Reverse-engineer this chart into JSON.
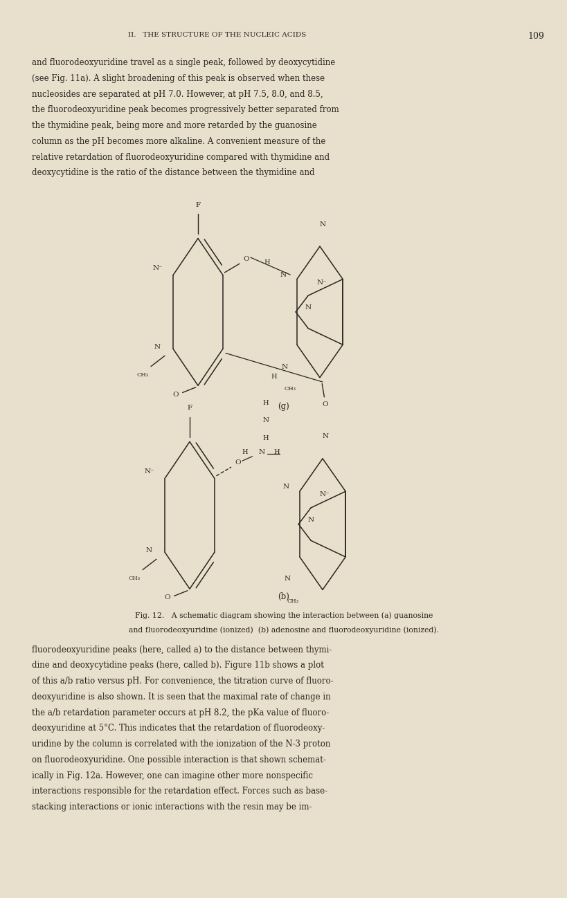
{
  "bg_color": "#e8e0cc",
  "text_color": "#2a2520",
  "page_width": 8.0,
  "page_height": 12.78,
  "header_text": "II.   THE STRUCTURE OF THE NUCLEIC ACIDS",
  "header_page": "109",
  "para1_lines": [
    "and fluorodeoxyuridine travel as a single peak, followed by deoxycytidine",
    "(see Fig. 11a). A slight broadening of this peak is observed when these",
    "nucleosides are separated at pH 7.0. However, at pH 7.5, 8.0, and 8.5,",
    "the fluorodeoxyuridine peak becomes progressively better separated from",
    "the thymidine peak, being more and more retarded by the guanosine",
    "column as the pH becomes more alkaline. A convenient measure of the",
    "relative retardation of fluorodeoxyuridine compared with thymidine and",
    "deoxycytidine is the ratio of the distance between the thymidine and"
  ],
  "caption_lines": [
    "Fig. 12.   A schematic diagram showing the interaction between (a) guanosine",
    "and fluorodeoxyuridine (ionized)  (b) adenosine and fluorodeoxyuridine (ionized)."
  ],
  "para2_lines": [
    "fluorodeoxyuridine peaks (here, called a) to the distance between thymi-",
    "dine and deoxycytidine peaks (here, called b). Figure 11b shows a plot",
    "of this a/b ratio versus pH. For convenience, the titration curve of fluoro-",
    "deoxyuridine is also shown. It is seen that the maximal rate of change in",
    "the a/b retardation parameter occurs at pH 8.2, the pKa value of fluoro-",
    "deoxyuridine at 5°C. This indicates that the retardation of fluorodeoxy-",
    "uridine by the column is correlated with the ionization of the N-3 proton",
    "on fluorodeoxyuridine. One possible interaction is that shown schemat-",
    "ically in Fig. 12a. However, one can imagine other more nonspecific",
    "interactions responsible for the retardation effect. Forces such as base-",
    "stacking interactions or ionic interactions with the resin may be im-"
  ]
}
